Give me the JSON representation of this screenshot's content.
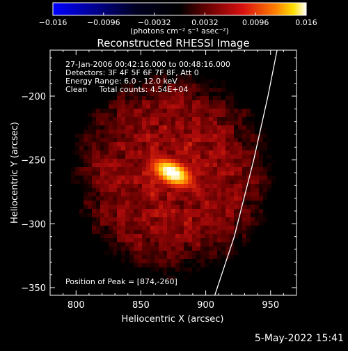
{
  "chart_data": {
    "type": "heatmap",
    "title": "Reconstructed RHESSI Image",
    "xlabel": "Heliocentric X (arcsec)",
    "ylabel": "Heliocentric Y (arcsec)",
    "xlim": [
      780,
      970
    ],
    "ylim": [
      -356,
      -164
    ],
    "x_ticks": [
      800,
      850,
      900,
      950
    ],
    "y_ticks": [
      -200,
      -250,
      -300,
      -350
    ],
    "colorbar": {
      "range": [
        -0.016,
        0.016
      ],
      "tick_labels": [
        "-0.016",
        "-0.0096",
        "-0.0032",
        "0.0032",
        "0.0096",
        "0.016"
      ],
      "unit_label": "(photons cm⁻² s⁻¹ asec⁻²)"
    },
    "annotations": [
      "27-Jan-2006 00:42:16.000 to 00:48:16.000",
      "Detectors: 3F 4F 5F 6F 7F 8F, Att 0",
      "Energy Range: 6.0 - 12.0 keV",
      "Clean     Total counts: 4.54E+04"
    ],
    "peak_label": "Position of Peak = [874,-260]",
    "peak": {
      "x": 874,
      "y": -260,
      "value": 0.016
    },
    "limb_curve": [
      {
        "x": 955,
        "y": -164
      },
      {
        "x": 948,
        "y": -200
      },
      {
        "x": 937,
        "y": -250
      },
      {
        "x": 922,
        "y": -310
      },
      {
        "x": 907,
        "y": -356
      }
    ]
  },
  "footer": {
    "date": "5-May-2022 15:41"
  },
  "colors": {
    "background": "#000000",
    "limb": "#ffffff",
    "colormap": [
      "#0000ff",
      "#000000",
      "#800000",
      "#ff0000",
      "#ffff00",
      "#ffffff"
    ]
  }
}
